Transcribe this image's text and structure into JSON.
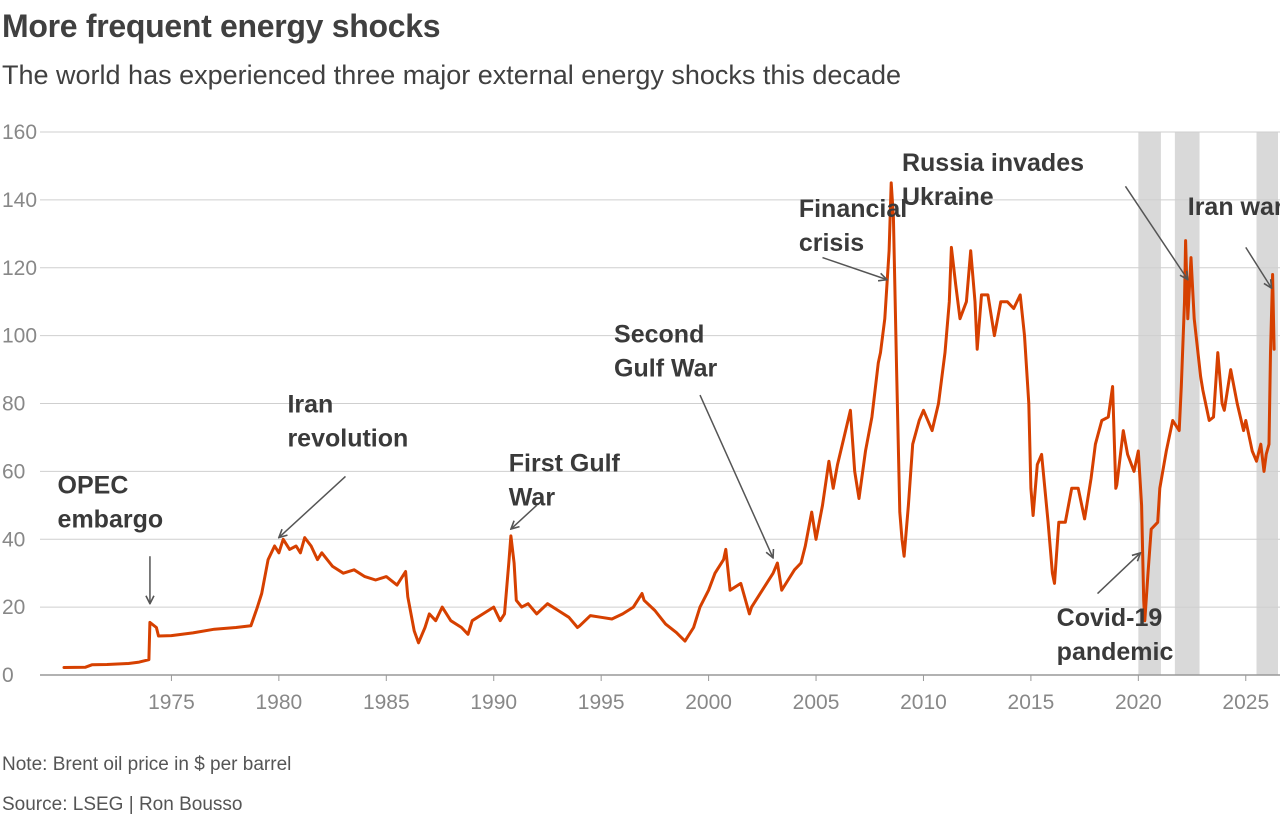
{
  "title": "More frequent energy shocks",
  "subtitle": "The world has experienced three major external energy shocks this decade",
  "note": "Note: Brent oil price in $ per barrel",
  "source": "Source: LSEG | Ron Bousso",
  "colors": {
    "line": "#d64000",
    "grid": "#cfcfcf",
    "shade": "#d9d9d9",
    "axis": "#999999"
  },
  "chart_data": {
    "type": "line",
    "title": "More frequent energy shocks",
    "subtitle": "The world has experienced three major external energy shocks this decade",
    "ylim": [
      0,
      160
    ],
    "xlim": [
      1970,
      2026.5
    ],
    "yticks": [
      "0",
      "20",
      "40",
      "60",
      "80",
      "100",
      "120",
      "140",
      "160"
    ],
    "xticks": [
      "1975",
      "1980",
      "1985",
      "1990",
      "1995",
      "2000",
      "2005",
      "2010",
      "2015",
      "2020",
      "2025"
    ],
    "grid": true,
    "shaded_periods": [
      [
        2020.0,
        2021.05
      ],
      [
        2021.7,
        2022.85
      ],
      [
        2025.5,
        2026.5
      ]
    ],
    "series": [
      {
        "points": [
          [
            1970.0,
            2.2
          ],
          [
            1971.0,
            2.3
          ],
          [
            1971.3,
            3.0
          ],
          [
            1972.0,
            3.1
          ],
          [
            1973.0,
            3.4
          ],
          [
            1973.5,
            3.8
          ],
          [
            1973.95,
            4.5
          ],
          [
            1974.0,
            15.5
          ],
          [
            1974.3,
            14.0
          ],
          [
            1974.4,
            11.5
          ],
          [
            1975.0,
            11.6
          ],
          [
            1976.0,
            12.4
          ],
          [
            1977.0,
            13.5
          ],
          [
            1978.0,
            14.0
          ],
          [
            1978.7,
            14.5
          ],
          [
            1979.0,
            20.0
          ],
          [
            1979.2,
            24.0
          ],
          [
            1979.5,
            34.0
          ],
          [
            1979.8,
            38.0
          ],
          [
            1980.0,
            36.0
          ],
          [
            1980.2,
            40.0
          ],
          [
            1980.5,
            37.0
          ],
          [
            1980.8,
            38.0
          ],
          [
            1981.0,
            36.0
          ],
          [
            1981.2,
            40.5
          ],
          [
            1981.5,
            38.0
          ],
          [
            1981.8,
            34.0
          ],
          [
            1982.0,
            36.0
          ],
          [
            1982.5,
            32.0
          ],
          [
            1983.0,
            30.0
          ],
          [
            1983.5,
            31.0
          ],
          [
            1984.0,
            29.0
          ],
          [
            1984.5,
            28.0
          ],
          [
            1985.0,
            29.0
          ],
          [
            1985.5,
            26.5
          ],
          [
            1985.9,
            30.5
          ],
          [
            1986.0,
            23.0
          ],
          [
            1986.3,
            13.0
          ],
          [
            1986.5,
            9.5
          ],
          [
            1986.8,
            14.0
          ],
          [
            1987.0,
            18.0
          ],
          [
            1987.3,
            16.0
          ],
          [
            1987.6,
            20.0
          ],
          [
            1988.0,
            16.0
          ],
          [
            1988.5,
            14.0
          ],
          [
            1988.8,
            12.0
          ],
          [
            1989.0,
            16.0
          ],
          [
            1989.5,
            18.0
          ],
          [
            1990.0,
            20.0
          ],
          [
            1990.3,
            16.0
          ],
          [
            1990.5,
            18.0
          ],
          [
            1990.7,
            33.0
          ],
          [
            1990.8,
            41.0
          ],
          [
            1990.95,
            33.0
          ],
          [
            1991.05,
            22.0
          ],
          [
            1991.3,
            20.0
          ],
          [
            1991.6,
            21.0
          ],
          [
            1992.0,
            18.0
          ],
          [
            1992.5,
            21.0
          ],
          [
            1993.0,
            19.0
          ],
          [
            1993.5,
            17.0
          ],
          [
            1993.9,
            14.0
          ],
          [
            1994.0,
            14.5
          ],
          [
            1994.5,
            17.5
          ],
          [
            1995.0,
            17.0
          ],
          [
            1995.5,
            16.5
          ],
          [
            1996.0,
            18.0
          ],
          [
            1996.5,
            20.0
          ],
          [
            1996.9,
            24.0
          ],
          [
            1997.0,
            22.0
          ],
          [
            1997.5,
            19.0
          ],
          [
            1998.0,
            15.0
          ],
          [
            1998.5,
            12.5
          ],
          [
            1998.9,
            10.0
          ],
          [
            1999.0,
            11.0
          ],
          [
            1999.3,
            14.0
          ],
          [
            1999.6,
            20.0
          ],
          [
            2000.0,
            25.0
          ],
          [
            2000.3,
            30.0
          ],
          [
            2000.7,
            34.0
          ],
          [
            2000.8,
            37.0
          ],
          [
            2001.0,
            25.0
          ],
          [
            2001.5,
            27.0
          ],
          [
            2001.9,
            18.0
          ],
          [
            2002.0,
            20.0
          ],
          [
            2002.5,
            25.0
          ],
          [
            2003.0,
            30.0
          ],
          [
            2003.2,
            33.0
          ],
          [
            2003.4,
            25.0
          ],
          [
            2003.7,
            28.0
          ],
          [
            2004.0,
            31.0
          ],
          [
            2004.3,
            33.0
          ],
          [
            2004.5,
            38.0
          ],
          [
            2004.8,
            48.0
          ],
          [
            2005.0,
            40.0
          ],
          [
            2005.3,
            50.0
          ],
          [
            2005.6,
            63.0
          ],
          [
            2005.8,
            55.0
          ],
          [
            2006.0,
            62.0
          ],
          [
            2006.3,
            70.0
          ],
          [
            2006.6,
            78.0
          ],
          [
            2006.8,
            60.0
          ],
          [
            2007.0,
            52.0
          ],
          [
            2007.3,
            66.0
          ],
          [
            2007.6,
            76.0
          ],
          [
            2007.9,
            92.0
          ],
          [
            2008.0,
            95.0
          ],
          [
            2008.2,
            105.0
          ],
          [
            2008.4,
            125.0
          ],
          [
            2008.5,
            145.0
          ],
          [
            2008.6,
            135.0
          ],
          [
            2008.75,
            90.0
          ],
          [
            2008.9,
            48.0
          ],
          [
            2009.0,
            40.0
          ],
          [
            2009.1,
            35.0
          ],
          [
            2009.3,
            50.0
          ],
          [
            2009.5,
            68.0
          ],
          [
            2009.8,
            75.0
          ],
          [
            2010.0,
            78.0
          ],
          [
            2010.4,
            72.0
          ],
          [
            2010.7,
            80.0
          ],
          [
            2011.0,
            95.0
          ],
          [
            2011.2,
            110.0
          ],
          [
            2011.3,
            126.0
          ],
          [
            2011.5,
            115.0
          ],
          [
            2011.7,
            105.0
          ],
          [
            2012.0,
            110.0
          ],
          [
            2012.2,
            125.0
          ],
          [
            2012.4,
            110.0
          ],
          [
            2012.5,
            96.0
          ],
          [
            2012.7,
            112.0
          ],
          [
            2013.0,
            112.0
          ],
          [
            2013.3,
            100.0
          ],
          [
            2013.6,
            110.0
          ],
          [
            2013.9,
            110.0
          ],
          [
            2014.2,
            108.0
          ],
          [
            2014.5,
            112.0
          ],
          [
            2014.7,
            100.0
          ],
          [
            2014.9,
            80.0
          ],
          [
            2015.0,
            55.0
          ],
          [
            2015.1,
            47.0
          ],
          [
            2015.3,
            62.0
          ],
          [
            2015.5,
            65.0
          ],
          [
            2015.8,
            45.0
          ],
          [
            2016.0,
            30.0
          ],
          [
            2016.1,
            27.0
          ],
          [
            2016.3,
            45.0
          ],
          [
            2016.6,
            45.0
          ],
          [
            2016.9,
            55.0
          ],
          [
            2017.2,
            55.0
          ],
          [
            2017.5,
            46.0
          ],
          [
            2017.8,
            58.0
          ],
          [
            2018.0,
            68.0
          ],
          [
            2018.3,
            75.0
          ],
          [
            2018.6,
            76.0
          ],
          [
            2018.8,
            85.0
          ],
          [
            2018.95,
            55.0
          ],
          [
            2019.0,
            56.0
          ],
          [
            2019.3,
            72.0
          ],
          [
            2019.5,
            65.0
          ],
          [
            2019.8,
            60.0
          ],
          [
            2020.0,
            66.0
          ],
          [
            2020.15,
            50.0
          ],
          [
            2020.25,
            22.0
          ],
          [
            2020.3,
            16.0
          ],
          [
            2020.45,
            30.0
          ],
          [
            2020.6,
            43.0
          ],
          [
            2020.9,
            45.0
          ],
          [
            2021.0,
            55.0
          ],
          [
            2021.3,
            66.0
          ],
          [
            2021.6,
            75.0
          ],
          [
            2021.9,
            72.0
          ],
          [
            2022.0,
            85.0
          ],
          [
            2022.15,
            110.0
          ],
          [
            2022.2,
            128.0
          ],
          [
            2022.3,
            105.0
          ],
          [
            2022.45,
            123.0
          ],
          [
            2022.6,
            105.0
          ],
          [
            2022.9,
            88.0
          ],
          [
            2023.0,
            84.0
          ],
          [
            2023.3,
            75.0
          ],
          [
            2023.5,
            76.0
          ],
          [
            2023.7,
            95.0
          ],
          [
            2023.9,
            80.0
          ],
          [
            2024.0,
            78.0
          ],
          [
            2024.3,
            90.0
          ],
          [
            2024.6,
            80.0
          ],
          [
            2024.9,
            72.0
          ],
          [
            2025.0,
            75.0
          ],
          [
            2025.3,
            66.0
          ],
          [
            2025.5,
            63.0
          ],
          [
            2025.7,
            68.0
          ],
          [
            2025.85,
            60.0
          ],
          [
            2025.95,
            65.0
          ],
          [
            2026.08,
            68.0
          ],
          [
            2026.15,
            95.0
          ],
          [
            2026.25,
            118.0
          ],
          [
            2026.32,
            96.0
          ]
        ]
      }
    ],
    "annotations": [
      {
        "lines": [
          "OPEC",
          "embargo"
        ],
        "text_x": 1969.7,
        "text_y": 53.5,
        "arrow": [
          [
            1974.0,
            35.0
          ],
          [
            1974.0,
            21.0
          ]
        ]
      },
      {
        "lines": [
          "Iran",
          "revolution"
        ],
        "text_x": 1980.4,
        "text_y": 77.3,
        "arrow": [
          [
            1983.1,
            58.5
          ],
          [
            1980.0,
            40.5
          ]
        ]
      },
      {
        "lines": [
          "First Gulf",
          "War"
        ],
        "text_x": 1990.7,
        "text_y": 60.0,
        "arrow": [
          [
            1992.0,
            50.0
          ],
          [
            1990.8,
            43.0
          ]
        ]
      },
      {
        "lines": [
          "Second",
          "Gulf War"
        ],
        "text_x": 1995.6,
        "text_y": 98.0,
        "arrow": [
          [
            1999.6,
            82.5
          ],
          [
            2003.0,
            34.5
          ]
        ]
      },
      {
        "lines": [
          "Financial",
          "crisis"
        ],
        "text_x": 2004.2,
        "text_y": 135.0,
        "arrow": [
          [
            2005.3,
            123.0
          ],
          [
            2008.3,
            116.5
          ]
        ]
      },
      {
        "lines": [
          "Russia invades",
          "Ukraine"
        ],
        "text_x": 2009.0,
        "text_y": 148.5,
        "arrow": [
          [
            2019.4,
            144.0
          ],
          [
            2022.3,
            116.5
          ]
        ]
      },
      {
        "lines": [
          "Iran war"
        ],
        "text_x": 2022.3,
        "text_y": 135.5,
        "arrow": [
          [
            2025.0,
            126.0
          ],
          [
            2026.2,
            114.0
          ]
        ]
      },
      {
        "lines": [
          "Covid-19",
          "pandemic"
        ],
        "text_x": 2016.2,
        "text_y": 14.5,
        "arrow": [
          [
            2018.1,
            24.0
          ],
          [
            2020.1,
            36.0
          ]
        ]
      }
    ]
  }
}
